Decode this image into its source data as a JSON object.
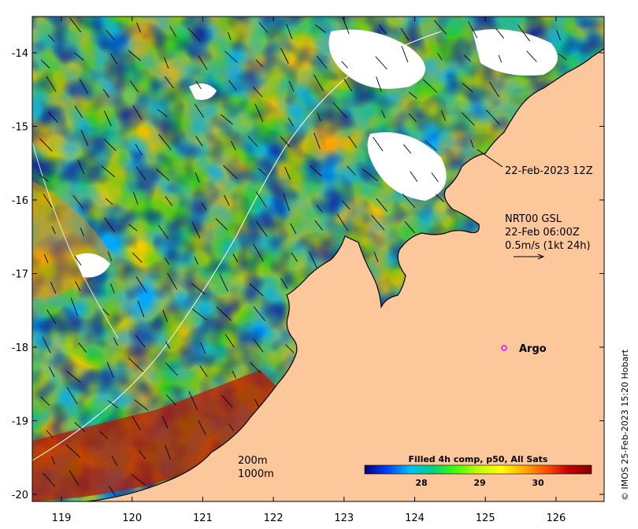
{
  "map": {
    "x_ticks": [
      "119",
      "120",
      "121",
      "122",
      "123",
      "124",
      "125",
      "126"
    ],
    "y_ticks": [
      "-14",
      "-15",
      "-16",
      "-17",
      "-18",
      "-19",
      "-20"
    ],
    "land_color": "#fcc89b",
    "timestamp_label": "22-Feb-2023 12Z",
    "current_source": {
      "line1": "NRT00 GSL",
      "line2": "22-Feb 06:00Z",
      "line3": "0.5m/s (1kt 24h)"
    },
    "float_label": "Argo",
    "float_color": "#ff00ff",
    "isobaths": [
      "200m",
      "1000m"
    ],
    "colorbar": {
      "title": "Filled 4h comp, p50, All Sats",
      "ticks": [
        "28",
        "29",
        "30"
      ],
      "stops": [
        "#00007f",
        "#0040ff",
        "#00c0ff",
        "#00d080",
        "#40ff00",
        "#c0ff00",
        "#ffff00",
        "#ffb000",
        "#ff5000",
        "#c00000",
        "#800000"
      ]
    },
    "credit": "© IMOS 25-Feb-2023 15:20 Hobart"
  }
}
